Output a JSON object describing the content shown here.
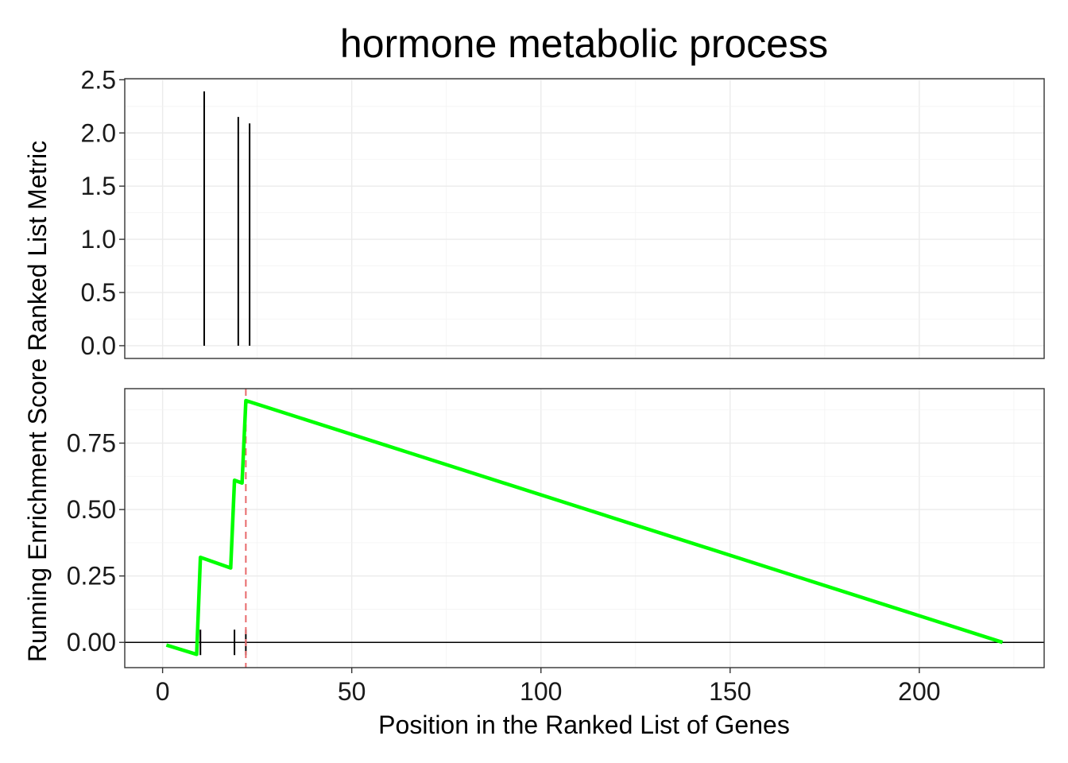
{
  "chart_data": {
    "type": "line",
    "title": "hormone metabolic process",
    "xlabel": "Position in the Ranked List of Genes",
    "ylabel": "Running Enrichment Score Ranked List Metric",
    "xlim": [
      -10,
      233
    ],
    "x_ticks": [
      0,
      50,
      100,
      150,
      200
    ],
    "x_tick_labels": [
      "0",
      "50",
      "100",
      "150",
      "200"
    ],
    "grid": true,
    "panels": {
      "metric": {
        "ylim": [
          -0.12,
          2.51
        ],
        "y_ticks": [
          0.0,
          0.5,
          1.0,
          1.5,
          2.0,
          2.5
        ],
        "y_tick_labels": [
          "0.0",
          "0.5",
          "1.0",
          "1.5",
          "2.0",
          "2.5"
        ],
        "hits": [
          {
            "x": 11,
            "value": 2.39
          },
          {
            "x": 20,
            "value": 2.15
          },
          {
            "x": 23,
            "value": 2.09
          }
        ]
      },
      "running_es": {
        "ylim": [
          -0.095,
          0.955
        ],
        "y_ticks": [
          0.0,
          0.25,
          0.5,
          0.75
        ],
        "y_tick_labels": [
          "0.00",
          "0.25",
          "0.50",
          "0.75"
        ],
        "line_color": "#00ff00",
        "peak_line_color": "#e8696b",
        "peak_x": 22,
        "zero_line": 0,
        "gene_hits_x": [
          10,
          19,
          22
        ],
        "series": [
          {
            "x": [
              1,
              9,
              10,
              18,
              19,
              21,
              22,
              222
            ],
            "values": [
              -0.01,
              -0.045,
              0.32,
              0.28,
              0.61,
              0.6,
              0.91,
              0.0
            ]
          }
        ]
      }
    }
  }
}
